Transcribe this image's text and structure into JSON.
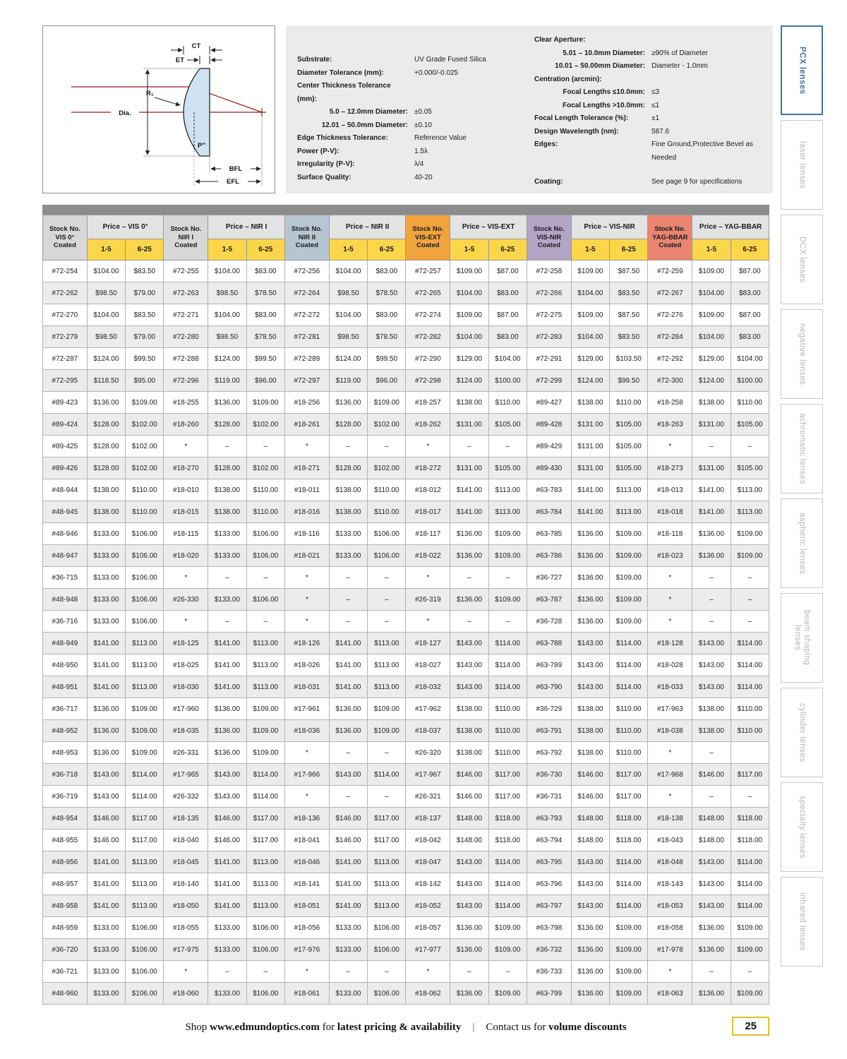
{
  "colors": {
    "group_gray": "#d7d7d7",
    "nir2_blue": "#b7c5d3",
    "visext_orange": "#f1a33c",
    "visnir_purple": "#b2a5c5",
    "yag_salmon": "#e98570",
    "qty_yellow": "#fbd64b",
    "price_head_gray": "#e3e3e3",
    "table_bar_gray": "#8c8c8c",
    "active_tab_blue": "#44749e",
    "page_box_gold": "#d8c22e",
    "ray_red": "#9e1b1b"
  },
  "diagram": {
    "labels": {
      "ct": "CT",
      "et": "ET",
      "r1": "R₁",
      "dia": "Dia.",
      "p": "P″",
      "bfl": "BFL",
      "efl": "EFL"
    }
  },
  "specs": {
    "left": [
      {
        "label": "Substrate:",
        "value": "UV Grade Fused Silica",
        "indent": false
      },
      {
        "label": "Diameter Tolerance (mm):",
        "value": "+0.000/-0.025",
        "indent": false
      },
      {
        "label": "Center Thickness Tolerance (mm):",
        "value": "",
        "indent": false
      },
      {
        "label": "5.0 – 12.0mm Diameter:",
        "value": "±0.05",
        "indent": true
      },
      {
        "label": "12.01 – 50.0mm Diameter:",
        "value": "±0.10",
        "indent": true
      },
      {
        "label": "Edge Thickness Tolerance:",
        "value": "Reference Value",
        "indent": false
      },
      {
        "label": "Power (P-V):",
        "value": "1.5λ",
        "indent": false
      },
      {
        "label": "Irregularity (P-V):",
        "value": "λ/4",
        "indent": false
      },
      {
        "label": "Surface Quality:",
        "value": "40-20",
        "indent": false
      }
    ],
    "right": [
      {
        "label": "Clear Aperture:",
        "value": "",
        "indent": false
      },
      {
        "label": "5.01 – 10.0mm Diameter:",
        "value": "≥90% of Diameter",
        "indent": true
      },
      {
        "label": "10.01 – 50.00mm Diameter:",
        "value": "Diameter - 1.0mm",
        "indent": true
      },
      {
        "label": "Centration (arcmin):",
        "value": "",
        "indent": false
      },
      {
        "label": "Focal Lengths ≤10.0mm:",
        "value": "≤3",
        "indent": true
      },
      {
        "label": "Focal Lengths >10.0mm:",
        "value": "≤1",
        "indent": true
      },
      {
        "label": "Focal Length Tolerance (%):",
        "value": "±1",
        "indent": false
      },
      {
        "label": "Design Wavelength (nm):",
        "value": "587.6",
        "indent": false
      },
      {
        "label": "Edges:",
        "value": "Fine Ground,Protective Bevel as Needed",
        "indent": false
      },
      {
        "label": "Coating:",
        "value": "See page 9 for specifications",
        "indent": false,
        "spacer": true
      }
    ]
  },
  "sidebar": {
    "tabs": [
      {
        "label": "PCX lenses",
        "active": true
      },
      {
        "label": "laser lenses",
        "active": false
      },
      {
        "label": "DCX lenses",
        "active": false
      },
      {
        "label": "negative lenses",
        "active": false
      },
      {
        "label": "achromatic lenses",
        "active": false
      },
      {
        "label": "aspheric lenses",
        "active": false
      },
      {
        "label": "beam shaping lenses",
        "active": false
      },
      {
        "label": "cylinder lenses",
        "active": false
      },
      {
        "label": "specialty lenses",
        "active": false
      },
      {
        "label": "infrared lenses",
        "active": false
      }
    ]
  },
  "table": {
    "qty_headers": [
      "1-5",
      "6-25"
    ],
    "groups": [
      {
        "stock_lines": [
          "Stock No.",
          "VIS 0°",
          "Coated"
        ],
        "price_label": "Price – VIS 0°",
        "color": "#d7d7d7"
      },
      {
        "stock_lines": [
          "Stock No.",
          "NIR I",
          "Coated"
        ],
        "price_label": "Price – NIR I",
        "color": "#d7d7d7"
      },
      {
        "stock_lines": [
          "Stock No.",
          "NIR II",
          "Coated"
        ],
        "price_label": "Price – NIR II",
        "color": "#b7c5d3"
      },
      {
        "stock_lines": [
          "Stock No.",
          "VIS-EXT",
          "Coated"
        ],
        "price_label": "Price – VIS-EXT",
        "color": "#f1a33c"
      },
      {
        "stock_lines": [
          "Stock No.",
          "VIS-NIR",
          "Coated"
        ],
        "price_label": "Price – VIS-NIR",
        "color": "#b2a5c5"
      },
      {
        "stock_lines": [
          "Stock No.",
          "YAG-BBAR",
          "Coated"
        ],
        "price_label": "Price – YAG-BBAR",
        "color": "#e98570"
      }
    ],
    "rows": [
      [
        "#72-254",
        "$104.00",
        "$83.50",
        "#72-255",
        "$104.00",
        "$83.00",
        "#72-256",
        "$104.00",
        "$83.00",
        "#72-257",
        "$109.00",
        "$87.00",
        "#72-258",
        "$109.00",
        "$87.50",
        "#72-259",
        "$109.00",
        "$87.00"
      ],
      [
        "#72-262",
        "$98.50",
        "$79.00",
        "#72-263",
        "$98.50",
        "$78.50",
        "#72-264",
        "$98.50",
        "$78.50",
        "#72-265",
        "$104.00",
        "$83.00",
        "#72-266",
        "$104.00",
        "$83.50",
        "#72-267",
        "$104.00",
        "$83.00"
      ],
      [
        "#72-270",
        "$104.00",
        "$83.50",
        "#72-271",
        "$104.00",
        "$83.00",
        "#72-272",
        "$104.00",
        "$83.00",
        "#72-274",
        "$109.00",
        "$87.00",
        "#72-275",
        "$109.00",
        "$87.50",
        "#72-276",
        "$109.00",
        "$87.00"
      ],
      [
        "#72-279",
        "$98.50",
        "$79.00",
        "#72-280",
        "$98.50",
        "$78.50",
        "#72-281",
        "$98.50",
        "$78.50",
        "#72-282",
        "$104.00",
        "$83.00",
        "#72-283",
        "$104.00",
        "$83.50",
        "#72-284",
        "$104.00",
        "$83.00"
      ],
      [
        "#72-287",
        "$124.00",
        "$99.50",
        "#72-288",
        "$124.00",
        "$99.50",
        "#72-289",
        "$124.00",
        "$99.50",
        "#72-290",
        "$129.00",
        "$104.00",
        "#72-291",
        "$129.00",
        "$103.50",
        "#72-292",
        "$129.00",
        "$104.00"
      ],
      [
        "#72-295",
        "$118.50",
        "$95.00",
        "#72-296",
        "$119.00",
        "$96.00",
        "#72-297",
        "$119.00",
        "$96.00",
        "#72-298",
        "$124.00",
        "$100.00",
        "#72-299",
        "$124.00",
        "$99.50",
        "#72-300",
        "$124.00",
        "$100.00"
      ],
      [
        "#89-423",
        "$136.00",
        "$109.00",
        "#18-255",
        "$136.00",
        "$109.00",
        "#18-256",
        "$136.00",
        "$109.00",
        "#18-257",
        "$138.00",
        "$110.00",
        "#89-427",
        "$138.00",
        "$110.00",
        "#18-258",
        "$138.00",
        "$110.00"
      ],
      [
        "#89-424",
        "$128.00",
        "$102.00",
        "#18-260",
        "$128.00",
        "$102.00",
        "#18-261",
        "$128.00",
        "$102.00",
        "#18-262",
        "$131.00",
        "$105.00",
        "#89-428",
        "$131.00",
        "$105.00",
        "#18-263",
        "$131.00",
        "$105.00"
      ],
      [
        "#89-425",
        "$128.00",
        "$102.00",
        "*",
        "–",
        "–",
        "*",
        "–",
        "–",
        "*",
        "–",
        "–",
        "#89-429",
        "$131.00",
        "$105.00",
        "*",
        "–",
        "–"
      ],
      [
        "#89-426",
        "$128.00",
        "$102.00",
        "#18-270",
        "$128.00",
        "$102.00",
        "#18-271",
        "$128.00",
        "$102.00",
        "#18-272",
        "$131.00",
        "$105.00",
        "#89-430",
        "$131.00",
        "$105.00",
        "#18-273",
        "$131.00",
        "$105.00"
      ],
      [
        "#48-944",
        "$138.00",
        "$110.00",
        "#18-010",
        "$138.00",
        "$110.00",
        "#18-011",
        "$138.00",
        "$110.00",
        "#18-012",
        "$141.00",
        "$113.00",
        "#63-783",
        "$141.00",
        "$113.00",
        "#18-013",
        "$141.00",
        "$113.00"
      ],
      [
        "#48-945",
        "$138.00",
        "$110.00",
        "#18-015",
        "$138.00",
        "$110.00",
        "#18-016",
        "$138.00",
        "$110.00",
        "#18-017",
        "$141.00",
        "$113.00",
        "#63-784",
        "$141.00",
        "$113.00",
        "#18-018",
        "$141.00",
        "$113.00"
      ],
      [
        "#48-946",
        "$133.00",
        "$106.00",
        "#18-115",
        "$133.00",
        "$106.00",
        "#18-116",
        "$133.00",
        "$106.00",
        "#18-117",
        "$136.00",
        "$109.00",
        "#63-785",
        "$136.00",
        "$109.00",
        "#18-118",
        "$136.00",
        "$109.00"
      ],
      [
        "#48-947",
        "$133.00",
        "$106.00",
        "#18-020",
        "$133.00",
        "$106.00",
        "#18-021",
        "$133.00",
        "$106.00",
        "#18-022",
        "$136.00",
        "$109.00",
        "#63-786",
        "$136.00",
        "$109.00",
        "#18-023",
        "$136.00",
        "$109.00"
      ],
      [
        "#36-715",
        "$133.00",
        "$106.00",
        "*",
        "–",
        "–",
        "*",
        "–",
        "–",
        "*",
        "–",
        "–",
        "#36-727",
        "$136.00",
        "$109.00",
        "*",
        "–",
        "–"
      ],
      [
        "#48-948",
        "$133.00",
        "$106.00",
        "#26-330",
        "$133.00",
        "$106.00",
        "*",
        "–",
        "–",
        "#26-319",
        "$136.00",
        "$109.00",
        "#63-787",
        "$136.00",
        "$109.00",
        "*",
        "–",
        "–"
      ],
      [
        "#36-716",
        "$133.00",
        "$106.00",
        "*",
        "–",
        "–",
        "*",
        "–",
        "–",
        "*",
        "–",
        "–",
        "#36-728",
        "$136.00",
        "$109.00",
        "*",
        "–",
        "–"
      ],
      [
        "#48-949",
        "$141.00",
        "$113.00",
        "#18-125",
        "$141.00",
        "$113.00",
        "#18-126",
        "$141.00",
        "$113.00",
        "#18-127",
        "$143.00",
        "$114.00",
        "#63-788",
        "$143.00",
        "$114.00",
        "#18-128",
        "$143.00",
        "$114.00"
      ],
      [
        "#48-950",
        "$141.00",
        "$113.00",
        "#18-025",
        "$141.00",
        "$113.00",
        "#18-026",
        "$141.00",
        "$113.00",
        "#18-027",
        "$143.00",
        "$114.00",
        "#63-789",
        "$143.00",
        "$114.00",
        "#18-028",
        "$143.00",
        "$114.00"
      ],
      [
        "#48-951",
        "$141.00",
        "$113.00",
        "#18-030",
        "$141.00",
        "$113.00",
        "#18-031",
        "$141.00",
        "$113.00",
        "#18-032",
        "$143.00",
        "$114.00",
        "#63-790",
        "$143.00",
        "$114.00",
        "#18-033",
        "$143.00",
        "$114.00"
      ],
      [
        "#36-717",
        "$136.00",
        "$109.00",
        "#17-960",
        "$136.00",
        "$109.00",
        "#17-961",
        "$136.00",
        "$109.00",
        "#17-962",
        "$138.00",
        "$110.00",
        "#36-729",
        "$138.00",
        "$110.00",
        "#17-963",
        "$138.00",
        "$110.00"
      ],
      [
        "#48-952",
        "$136.00",
        "$109.00",
        "#18-035",
        "$136.00",
        "$109.00",
        "#18-036",
        "$136.00",
        "$109.00",
        "#18-037",
        "$138.00",
        "$110.00",
        "#63-791",
        "$138.00",
        "$110.00",
        "#18-038",
        "$138.00",
        "$110.00"
      ],
      [
        "#48-953",
        "$136.00",
        "$109.00",
        "#26-331",
        "$136.00",
        "$109.00",
        "*",
        "–",
        "–",
        "#26-320",
        "$138.00",
        "$110.00",
        "#63-792",
        "$138.00",
        "$110.00",
        "*",
        "–",
        ""
      ],
      [
        "#36-718",
        "$143.00",
        "$114.00",
        "#17-965",
        "$143.00",
        "$114.00",
        "#17-966",
        "$143.00",
        "$114.00",
        "#17-967",
        "$146.00",
        "$117.00",
        "#36-730",
        "$146.00",
        "$117.00",
        "#17-968",
        "$146.00",
        "$117.00"
      ],
      [
        "#36-719",
        "$143.00",
        "$114.00",
        "#26-332",
        "$143.00",
        "$114.00",
        "*",
        "–",
        "–",
        "#26-321",
        "$146.00",
        "$117.00",
        "#36-731",
        "$146.00",
        "$117.00",
        "*",
        "–",
        "–"
      ],
      [
        "#48-954",
        "$146.00",
        "$117.00",
        "#18-135",
        "$146.00",
        "$117.00",
        "#18-136",
        "$146.00",
        "$117.00",
        "#18-137",
        "$148.00",
        "$118.00",
        "#63-793",
        "$148.00",
        "$118.00",
        "#18-138",
        "$148.00",
        "$118.00"
      ],
      [
        "#48-955",
        "$146.00",
        "$117.00",
        "#18-040",
        "$146.00",
        "$117.00",
        "#18-041",
        "$146.00",
        "$117.00",
        "#18-042",
        "$148.00",
        "$118.00",
        "#63-794",
        "$148.00",
        "$118.00",
        "#18-043",
        "$148.00",
        "$118.00"
      ],
      [
        "#48-956",
        "$141.00",
        "$113.00",
        "#18-045",
        "$141.00",
        "$113.00",
        "#18-046",
        "$141.00",
        "$113.00",
        "#18-047",
        "$143.00",
        "$114.00",
        "#63-795",
        "$143.00",
        "$114.00",
        "#18-048",
        "$143.00",
        "$114.00"
      ],
      [
        "#48-957",
        "$141.00",
        "$113.00",
        "#18-140",
        "$141.00",
        "$113.00",
        "#18-141",
        "$141.00",
        "$113.00",
        "#18-142",
        "$143.00",
        "$114.00",
        "#63-796",
        "$143.00",
        "$114.00",
        "#18-143",
        "$143.00",
        "$114.00"
      ],
      [
        "#48-958",
        "$141.00",
        "$113.00",
        "#18-050",
        "$141.00",
        "$113.00",
        "#18-051",
        "$141.00",
        "$113.00",
        "#18-052",
        "$143.00",
        "$114.00",
        "#63-797",
        "$143.00",
        "$114.00",
        "#18-053",
        "$143.00",
        "$114.00"
      ],
      [
        "#48-959",
        "$133.00",
        "$106.00",
        "#18-055",
        "$133.00",
        "$106.00",
        "#18-056",
        "$133.00",
        "$106.00",
        "#18-057",
        "$136.00",
        "$109.00",
        "#63-798",
        "$136.00",
        "$109.00",
        "#18-058",
        "$136.00",
        "$109.00"
      ],
      [
        "#36-720",
        "$133.00",
        "$106.00",
        "#17-975",
        "$133.00",
        "$106.00",
        "#17-976",
        "$133.00",
        "$106.00",
        "#17-977",
        "$136.00",
        "$109.00",
        "#36-732",
        "$136.00",
        "$109.00",
        "#17-978",
        "$136.00",
        "$109.00"
      ],
      [
        "#36-721",
        "$133.00",
        "$106.00",
        "*",
        "–",
        "–",
        "*",
        "–",
        "–",
        "*",
        "–",
        "–",
        "#36-733",
        "$136.00",
        "$109.00",
        "*",
        "–",
        "–"
      ],
      [
        "#48-960",
        "$133.00",
        "$106.00",
        "#18-060",
        "$133.00",
        "$106.00",
        "#18-061",
        "$133.00",
        "$106.00",
        "#18-062",
        "$136.00",
        "$109.00",
        "#63-799",
        "$136.00",
        "$109.00",
        "#18-063",
        "$136.00",
        "$109.00"
      ]
    ]
  },
  "footer": {
    "segments": [
      {
        "text": "Shop ",
        "bold": false
      },
      {
        "text": "www.edmundoptics.com",
        "bold": true,
        "link": true
      },
      {
        "text": " for ",
        "bold": false
      },
      {
        "text": "latest pricing & availability",
        "bold": true
      },
      {
        "text": "|",
        "bold": false,
        "sep": true
      },
      {
        "text": "Contact us for ",
        "bold": false
      },
      {
        "text": "volume discounts",
        "bold": true
      }
    ],
    "page_number": "25"
  }
}
